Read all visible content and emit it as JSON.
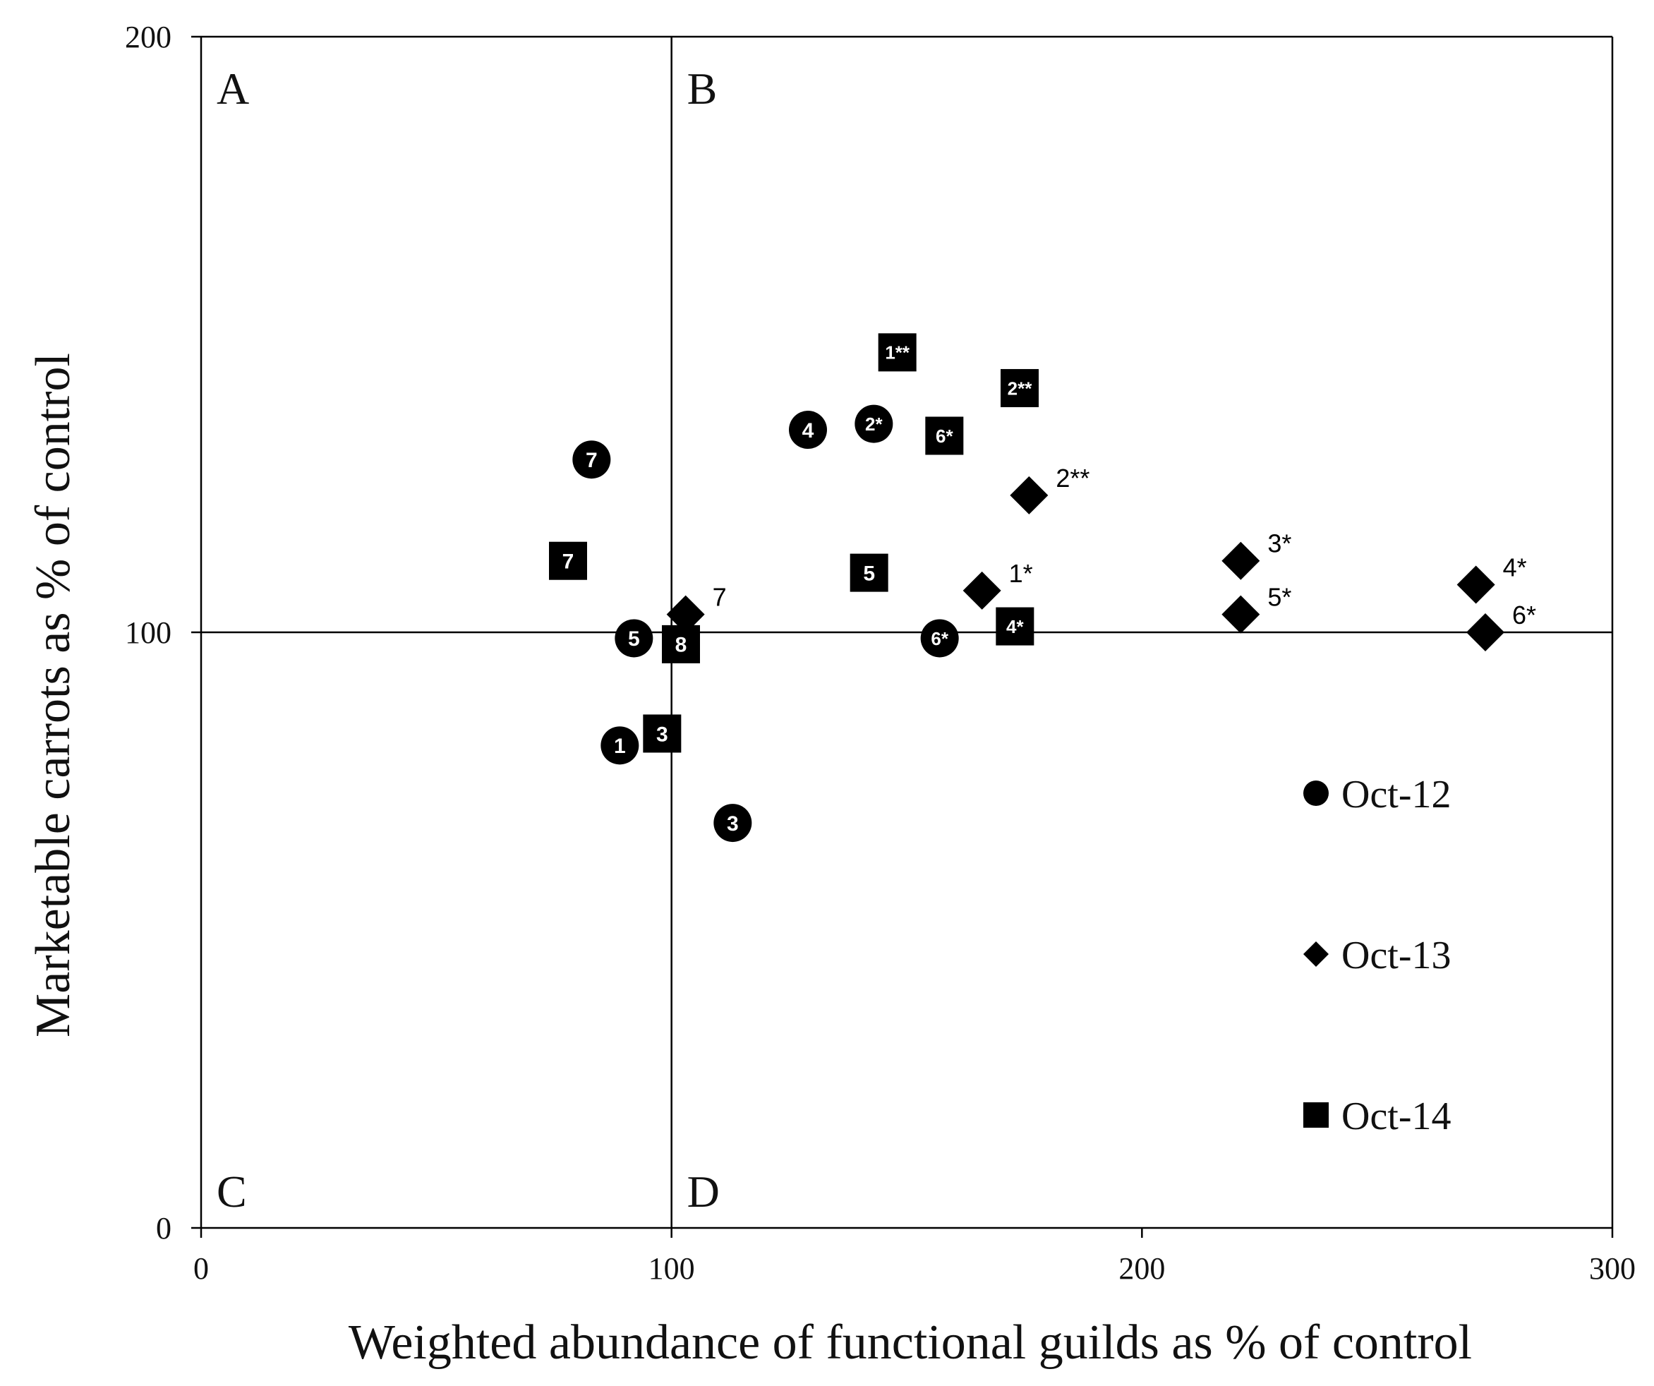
{
  "chart_data": {
    "type": "scatter",
    "title": "",
    "xlabel": "Weighted abundance of functional guilds as % of control",
    "ylabel": "Marketable carrots as % of control",
    "xlim": [
      0,
      300
    ],
    "ylim": [
      0,
      200
    ],
    "xticks": [
      "0",
      "100",
      "200",
      "300"
    ],
    "yticks": [
      "0",
      "100",
      "200"
    ],
    "reference_lines": {
      "x": 100,
      "y": 100
    },
    "quadrants": [
      "A",
      "B",
      "C",
      "D"
    ],
    "series": [
      {
        "name": "Oct-12",
        "marker": "circle",
        "points": [
          {
            "label": "1",
            "x": 89,
            "y": 81
          },
          {
            "label": "2*",
            "x": 143,
            "y": 135
          },
          {
            "label": "3",
            "x": 113,
            "y": 68
          },
          {
            "label": "4",
            "x": 129,
            "y": 134
          },
          {
            "label": "5",
            "x": 92,
            "y": 99
          },
          {
            "label": "6*",
            "x": 157,
            "y": 99
          },
          {
            "label": "7",
            "x": 83,
            "y": 129
          }
        ]
      },
      {
        "name": "Oct-13",
        "marker": "diamond",
        "points": [
          {
            "label": "1*",
            "x": 166,
            "y": 107
          },
          {
            "label": "2**",
            "x": 176,
            "y": 123
          },
          {
            "label": "3*",
            "x": 221,
            "y": 112
          },
          {
            "label": "4*",
            "x": 271,
            "y": 108
          },
          {
            "label": "5*",
            "x": 221,
            "y": 103
          },
          {
            "label": "6*",
            "x": 273,
            "y": 100
          },
          {
            "label": "7",
            "x": 103,
            "y": 103
          }
        ]
      },
      {
        "name": "Oct-14",
        "marker": "square",
        "points": [
          {
            "label": "1**",
            "x": 148,
            "y": 147
          },
          {
            "label": "2**",
            "x": 174,
            "y": 141
          },
          {
            "label": "3",
            "x": 98,
            "y": 83
          },
          {
            "label": "4*",
            "x": 173,
            "y": 101
          },
          {
            "label": "5",
            "x": 142,
            "y": 110
          },
          {
            "label": "6*",
            "x": 158,
            "y": 133
          },
          {
            "label": "7",
            "x": 78,
            "y": 112
          },
          {
            "label": "8",
            "x": 102,
            "y": 98
          }
        ]
      }
    ],
    "legend": [
      {
        "marker": "circle",
        "label": "Oct-12"
      },
      {
        "marker": "diamond",
        "label": "Oct-13"
      },
      {
        "marker": "square",
        "label": "Oct-14"
      }
    ]
  }
}
